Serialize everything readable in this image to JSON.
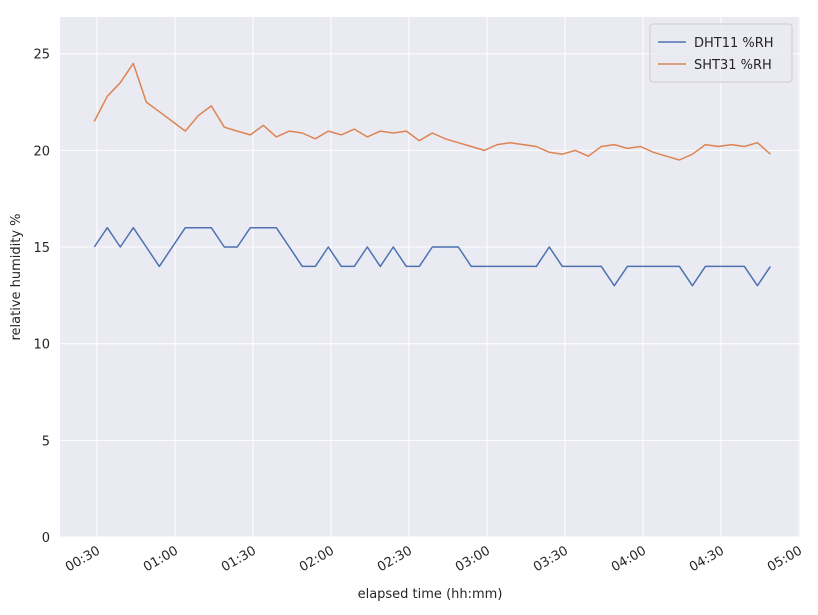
{
  "chart_data": {
    "type": "line",
    "xlabel": "elapsed time (hh:mm)",
    "ylabel": "relative humidity %",
    "x": [
      29,
      34,
      39,
      44,
      49,
      54,
      59,
      64,
      69,
      74,
      79,
      84,
      89,
      94,
      99,
      104,
      109,
      114,
      119,
      124,
      129,
      134,
      139,
      144,
      149,
      154,
      159,
      164,
      169,
      174,
      179,
      184,
      189,
      194,
      199,
      204,
      209,
      214,
      219,
      224,
      229,
      234,
      239,
      244,
      249,
      254,
      259,
      264,
      269,
      274,
      279,
      284,
      289
    ],
    "series": [
      {
        "name": "DHT11 %RH",
        "color": "#4c72b0",
        "values": [
          15,
          16,
          15,
          16,
          15,
          14,
          15,
          16,
          16,
          16,
          15,
          15,
          16,
          16,
          16,
          15,
          14,
          14,
          15,
          14,
          14,
          15,
          14,
          15,
          14,
          14,
          15,
          15,
          15,
          14,
          14,
          14,
          14,
          14,
          14,
          15,
          14,
          14,
          14,
          14,
          13,
          14,
          14,
          14,
          14,
          14,
          13,
          14,
          14,
          14,
          14,
          13,
          14
        ]
      },
      {
        "name": "SHT31 %RH",
        "color": "#dd8452",
        "values": [
          21.5,
          22.8,
          23.5,
          24.5,
          22.5,
          22.0,
          21.5,
          21.0,
          21.8,
          22.3,
          21.2,
          21.0,
          20.8,
          21.3,
          20.7,
          21.0,
          20.9,
          20.6,
          21.0,
          20.8,
          21.1,
          20.7,
          21.0,
          20.9,
          21.0,
          20.5,
          20.9,
          20.6,
          20.4,
          20.2,
          20.0,
          20.3,
          20.4,
          20.3,
          20.2,
          19.9,
          19.8,
          20.0,
          19.7,
          20.2,
          20.3,
          20.1,
          20.2,
          19.9,
          19.7,
          19.5,
          19.8,
          20.3,
          20.2,
          20.3,
          20.2,
          20.4,
          19.8
        ]
      }
    ],
    "xlim": [
      15.8,
      300.4
    ],
    "xticks": [
      {
        "value": 30,
        "label": "00:30"
      },
      {
        "value": 60,
        "label": "01:00"
      },
      {
        "value": 90,
        "label": "01:30"
      },
      {
        "value": 120,
        "label": "02:00"
      },
      {
        "value": 150,
        "label": "02:30"
      },
      {
        "value": 180,
        "label": "03:00"
      },
      {
        "value": 210,
        "label": "03:30"
      },
      {
        "value": 240,
        "label": "04:00"
      },
      {
        "value": 270,
        "label": "04:30"
      },
      {
        "value": 300,
        "label": "05:00"
      }
    ],
    "ylim": [
      0,
      26.9
    ],
    "yticks": [
      0,
      5,
      10,
      15,
      20,
      25
    ],
    "grid": true,
    "legend": "upper right"
  }
}
